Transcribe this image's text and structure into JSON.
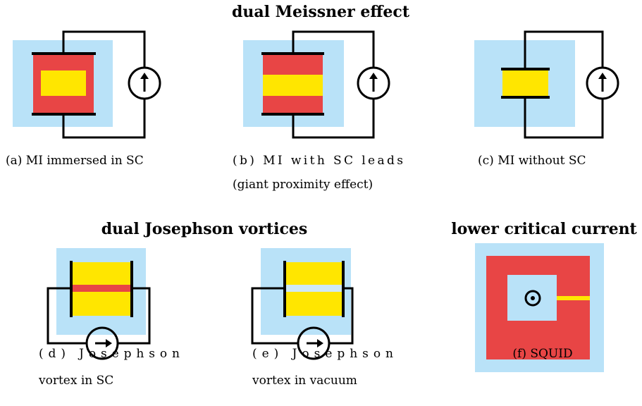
{
  "titles": [
    "dual Meissner effect",
    "dual Josephson vortices",
    "lower critical current"
  ],
  "captions": {
    "a": [
      "(a) MI immersed in SC"
    ],
    "b": [
      "(b) MI with SC leads",
      "(giant proximity effect)"
    ],
    "c": [
      "(c) MI without SC"
    ],
    "d": [
      "(d) Josephson",
      "vortex in SC"
    ],
    "e": [
      "(e) Josephson",
      "vortex in vacuum"
    ],
    "f": [
      "(f) SQUID"
    ]
  }
}
